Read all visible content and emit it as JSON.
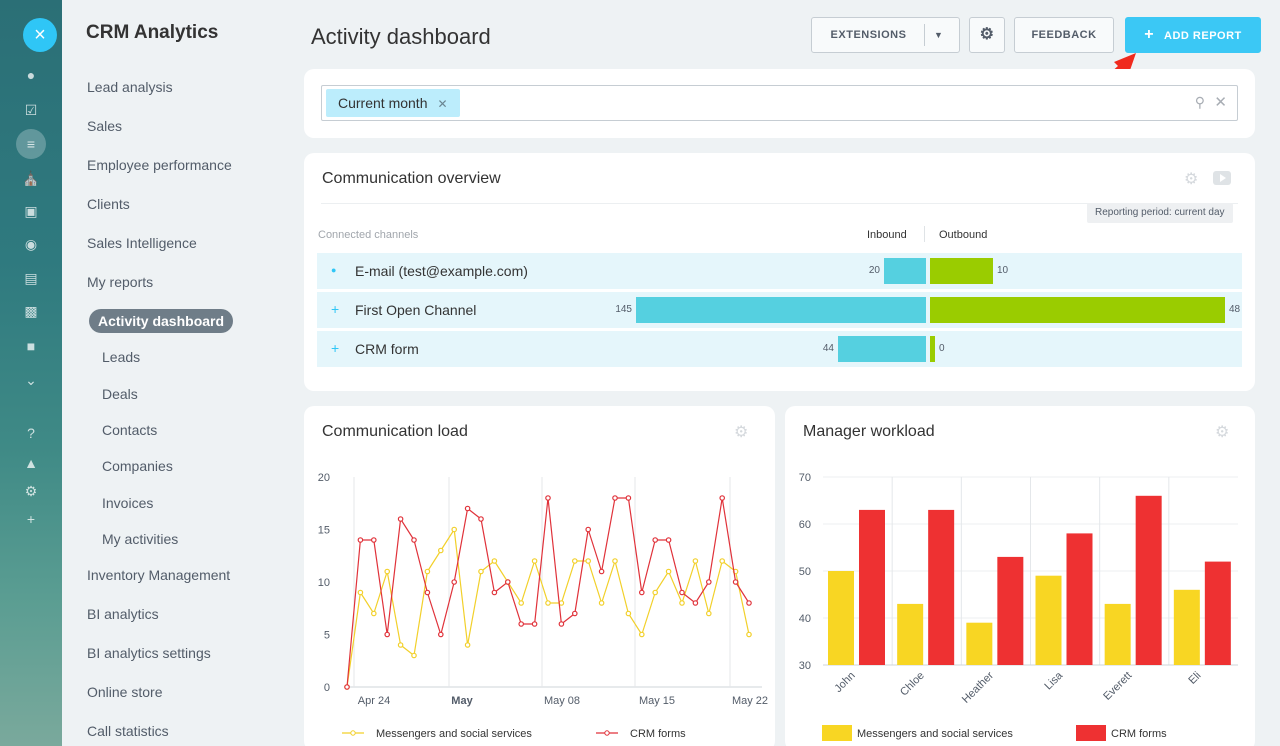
{
  "rail": {
    "close_icon": "×",
    "icons": [
      "chat-icon",
      "tasks-icon",
      "crm-icon",
      "sites-icon",
      "shop-icon",
      "target-icon",
      "contact-card-icon",
      "robot-icon",
      "box-icon",
      "more-icon",
      "help-icon",
      "structure-icon",
      "settings-icon",
      "add-icon"
    ]
  },
  "menu": {
    "title": "CRM Analytics",
    "items": {
      "lead_analysis": "Lead analysis",
      "sales": "Sales",
      "employee_performance": "Employee performance",
      "clients": "Clients",
      "sales_intelligence": "Sales Intelligence",
      "my_reports": "My reports",
      "activity_dashboard": "Activity dashboard",
      "leads": "Leads",
      "deals": "Deals",
      "contacts": "Contacts",
      "companies": "Companies",
      "invoices": "Invoices",
      "my_activities": "My activities",
      "inventory_management": "Inventory Management",
      "bi_analytics": "BI analytics",
      "bi_analytics_settings": "BI analytics settings",
      "online_store": "Online store",
      "call_statistics": "Call statistics"
    }
  },
  "header": {
    "title": "Activity dashboard",
    "extensions_label": "EXTENSIONS",
    "feedback_label": "FEEDBACK",
    "add_report_label": "ADD REPORT"
  },
  "filter": {
    "chip_label": "Current month"
  },
  "overview": {
    "title": "Communication overview",
    "period_label": "Reporting period: current day",
    "connected_channels_label": "Connected channels",
    "inbound_label": "Inbound",
    "outbound_label": "Outbound",
    "channels": [
      {
        "name": "E-mail (test@example.com)",
        "inbound": 20,
        "outbound": 10
      },
      {
        "name": "First Open Channel",
        "inbound": 145,
        "outbound": 48
      },
      {
        "name": "CRM form",
        "inbound": 44,
        "outbound": 0
      }
    ],
    "colors": {
      "inbound": "#55d0e0",
      "outbound": "#9acc00"
    }
  },
  "chart_data": [
    {
      "type": "line",
      "title": "Communication load",
      "ylim": [
        0,
        20
      ],
      "yticks": [
        "0",
        "5",
        "10",
        "15",
        "20"
      ],
      "xtick_labels": [
        "Apr 24",
        "May",
        "May 08",
        "May 15",
        "May 22"
      ],
      "series": [
        {
          "name": "Messengers and social services",
          "color": "#f2d02a",
          "values": [
            0,
            9,
            7,
            11,
            4,
            3,
            11,
            13,
            15,
            4,
            11,
            12,
            10,
            8,
            12,
            8,
            8,
            12,
            12,
            8,
            12,
            7,
            5,
            9,
            11,
            8,
            12,
            7,
            12,
            11,
            5
          ]
        },
        {
          "name": "CRM forms",
          "color": "#e0323a",
          "values": [
            0,
            14,
            14,
            5,
            16,
            14,
            9,
            5,
            10,
            17,
            16,
            9,
            10,
            6,
            6,
            18,
            6,
            7,
            15,
            11,
            18,
            18,
            9,
            14,
            14,
            9,
            8,
            10,
            18,
            10,
            8
          ]
        }
      ]
    },
    {
      "type": "bar",
      "title": "Manager workload",
      "ylim": [
        30,
        70
      ],
      "yticks": [
        "30",
        "40",
        "50",
        "60",
        "70"
      ],
      "categories": [
        "John",
        "Chloe",
        "Heather",
        "Lisa",
        "Everett",
        "Eli"
      ],
      "series": [
        {
          "name": "Messengers and social services",
          "color": "#f8d623",
          "values": [
            50,
            43,
            39,
            49,
            43,
            46
          ]
        },
        {
          "name": "CRM forms",
          "color": "#ee3132",
          "values": [
            63,
            63,
            53,
            58,
            66,
            52
          ]
        }
      ]
    }
  ]
}
